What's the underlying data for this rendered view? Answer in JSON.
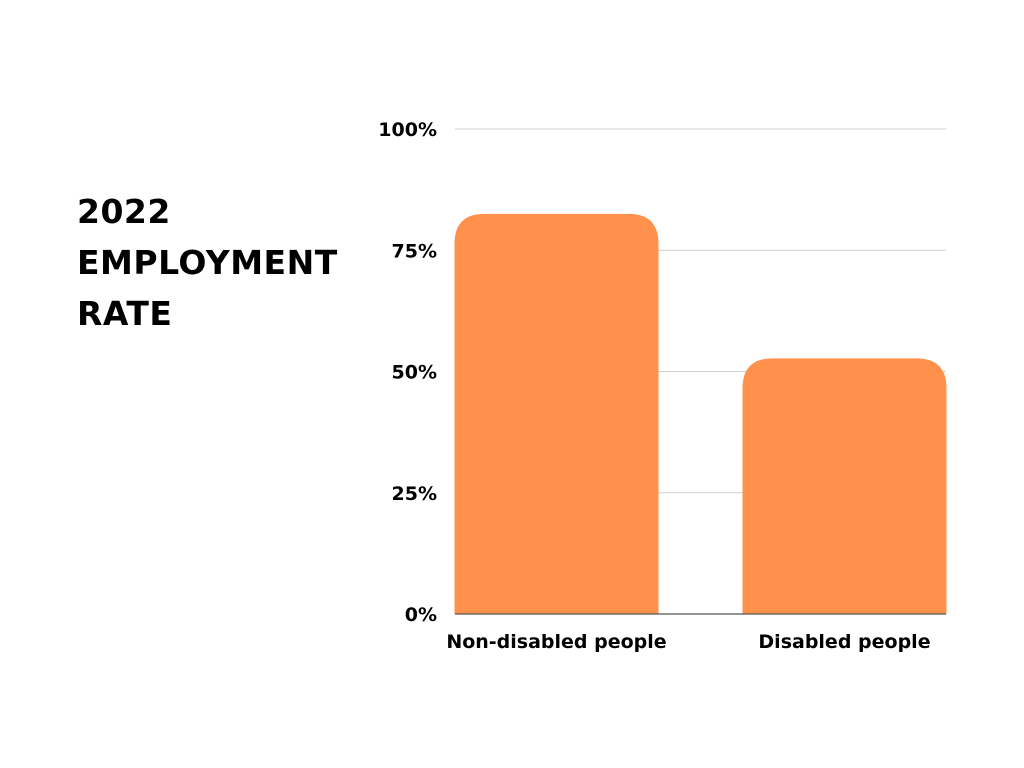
{
  "title_lines": [
    "2022",
    "EMPLOYMENT",
    "RATE"
  ],
  "chart_data": {
    "type": "bar",
    "title": "2022 EMPLOYMENT RATE",
    "categories": [
      "Non-disabled people",
      "Disabled people"
    ],
    "values": [
      82.5,
      52.7
    ],
    "unit": "%",
    "ylim": [
      0,
      100
    ],
    "yticks": [
      0,
      25,
      50,
      75,
      100
    ],
    "ytick_labels": [
      "0%",
      "25%",
      "50%",
      "75%",
      "100%"
    ],
    "xlabel": "",
    "ylabel": "",
    "grid": true,
    "legend": "none",
    "bar_color": "#ff914d"
  }
}
